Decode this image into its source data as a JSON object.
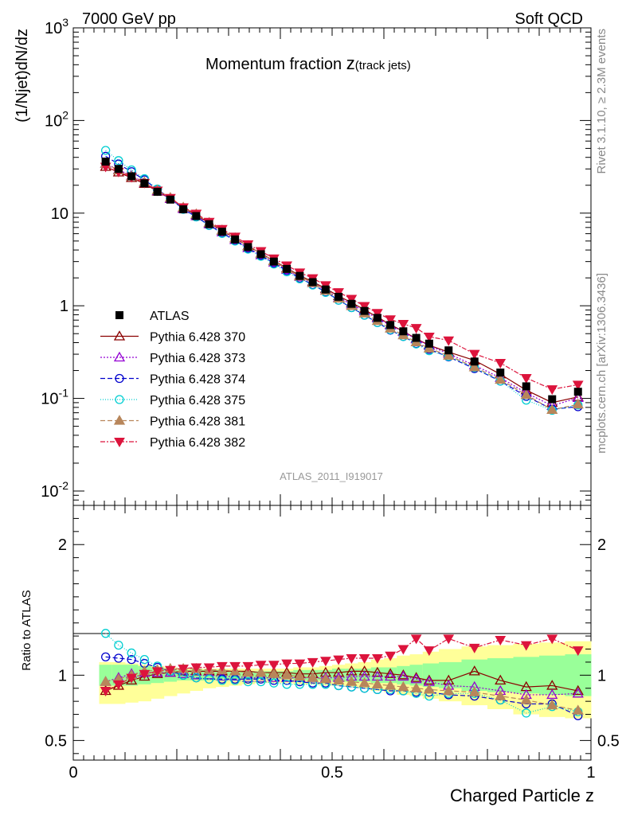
{
  "header": {
    "left": "7000 GeV pp",
    "right": "Soft QCD",
    "watermark": "ATLAS_2011_I919017",
    "side_top": "Rivet 3.1.10, ≥ 2.3M events",
    "side_bottom": "mcplots.cern.ch [arXiv:1306.3436]"
  },
  "chart_data": {
    "type": "scatter",
    "title_main": "Momentum fraction ",
    "title_var": "z",
    "title_sub": "(track jets)",
    "xlabel": "Charged Particle z",
    "ylabel": "(1/Njet)dN/dz",
    "ratio_ylabel": "Ratio to ATLAS",
    "xlim": [
      0,
      1
    ],
    "ylim": [
      0.007,
      1000
    ],
    "ylog": true,
    "ratio_ylim": [
      0.35,
      2.3
    ],
    "x_ticks": [
      "0",
      "0.5",
      "1"
    ],
    "y_ticks_main": [
      "10^-2",
      "10^-1",
      "1",
      "10",
      "10^2",
      "10^3"
    ],
    "y_ticks_ratio": [
      "0.5",
      "1",
      "2"
    ],
    "legend_position": "middle-left",
    "x": [
      0.0625,
      0.0875,
      0.1125,
      0.1375,
      0.1625,
      0.1875,
      0.2125,
      0.2375,
      0.2625,
      0.2875,
      0.3125,
      0.3375,
      0.3625,
      0.3875,
      0.4125,
      0.4375,
      0.4625,
      0.4875,
      0.5125,
      0.5375,
      0.5625,
      0.5875,
      0.6125,
      0.6375,
      0.6625,
      0.6875,
      0.725,
      0.775,
      0.825,
      0.875,
      0.925,
      0.975
    ],
    "data": {
      "name": "ATLAS",
      "color": "#000000",
      "values": [
        36,
        30,
        25,
        21,
        17,
        14,
        11,
        9.3,
        7.6,
        6.3,
        5.2,
        4.3,
        3.6,
        3.0,
        2.5,
        2.1,
        1.8,
        1.5,
        1.25,
        1.05,
        0.88,
        0.74,
        0.62,
        0.53,
        0.45,
        0.39,
        0.33,
        0.25,
        0.19,
        0.135,
        0.098,
        0.118
      ]
    },
    "band": {
      "upper": [
        1.08,
        1.08,
        1.08,
        1.07,
        1.06,
        1.05,
        1.04,
        1.04,
        1.04,
        1.04,
        1.03,
        1.03,
        1.03,
        1.03,
        1.03,
        1.04,
        1.04,
        1.04,
        1.05,
        1.05,
        1.05,
        1.06,
        1.06,
        1.07,
        1.08,
        1.09,
        1.1,
        1.12,
        1.13,
        1.14,
        1.15,
        1.16
      ],
      "lower": [
        0.92,
        0.92,
        0.92,
        0.93,
        0.94,
        0.95,
        0.96,
        0.96,
        0.96,
        0.97,
        0.97,
        0.97,
        0.97,
        0.97,
        0.97,
        0.96,
        0.96,
        0.96,
        0.95,
        0.95,
        0.95,
        0.94,
        0.94,
        0.93,
        0.92,
        0.91,
        0.9,
        0.88,
        0.87,
        0.86,
        0.85,
        0.84
      ],
      "outer_upper": [
        1.1,
        1.1,
        1.09,
        1.08,
        1.07,
        1.06,
        1.05,
        1.05,
        1.05,
        1.05,
        1.05,
        1.05,
        1.05,
        1.05,
        1.05,
        1.06,
        1.06,
        1.07,
        1.08,
        1.09,
        1.1,
        1.12,
        1.13,
        1.15,
        1.16,
        1.18,
        1.2,
        1.22,
        1.23,
        1.24,
        1.25,
        1.26
      ],
      "outer_lower": [
        0.78,
        0.78,
        0.79,
        0.8,
        0.82,
        0.84,
        0.86,
        0.88,
        0.9,
        0.91,
        0.92,
        0.93,
        0.94,
        0.94,
        0.94,
        0.93,
        0.93,
        0.92,
        0.92,
        0.91,
        0.9,
        0.88,
        0.87,
        0.85,
        0.84,
        0.82,
        0.8,
        0.77,
        0.74,
        0.7,
        0.68,
        0.67
      ]
    },
    "series": [
      {
        "name": "Pythia 6.428 370",
        "color": "#8b0000",
        "dash": "",
        "marker": "tri-up-open",
        "ratio": [
          0.88,
          0.92,
          0.96,
          0.99,
          1.01,
          1.02,
          1.03,
          1.03,
          1.03,
          1.03,
          1.03,
          1.03,
          1.02,
          1.02,
          1.02,
          1.01,
          1.01,
          1.02,
          1.02,
          1.03,
          1.03,
          1.02,
          1.01,
          1.0,
          0.98,
          0.96,
          0.96,
          1.03,
          0.96,
          0.91,
          0.92,
          0.88
        ]
      },
      {
        "name": "Pythia 6.428 373",
        "color": "#9400d3",
        "dash": "2,2",
        "marker": "tri-up-open",
        "ratio": [
          0.95,
          0.98,
          1.01,
          1.02,
          1.02,
          1.02,
          1.01,
          1.0,
          1.0,
          0.99,
          0.99,
          0.98,
          0.98,
          0.98,
          0.98,
          0.98,
          0.98,
          0.98,
          0.98,
          0.99,
          0.99,
          0.99,
          0.99,
          0.99,
          0.97,
          0.95,
          0.92,
          0.91,
          0.88,
          0.85,
          0.85,
          0.86
        ]
      },
      {
        "name": "Pythia 6.428 374",
        "color": "#0000cd",
        "dash": "6,3",
        "marker": "circle-open",
        "ratio": [
          1.14,
          1.13,
          1.12,
          1.09,
          1.06,
          1.03,
          1.0,
          0.98,
          0.97,
          0.97,
          0.97,
          0.97,
          0.97,
          0.96,
          0.96,
          0.95,
          0.94,
          0.94,
          0.92,
          0.91,
          0.9,
          0.89,
          0.88,
          0.88,
          0.87,
          0.87,
          0.85,
          0.84,
          0.81,
          0.78,
          0.78,
          0.69
        ]
      },
      {
        "name": "Pythia 6.428 375",
        "color": "#00ced1",
        "dash": "1,2",
        "marker": "circle-open",
        "ratio": [
          1.32,
          1.23,
          1.17,
          1.12,
          1.07,
          1.03,
          1.0,
          0.98,
          0.97,
          0.96,
          0.96,
          0.95,
          0.95,
          0.94,
          0.93,
          0.93,
          0.93,
          0.93,
          0.92,
          0.91,
          0.9,
          0.89,
          0.89,
          0.88,
          0.86,
          0.84,
          0.86,
          0.86,
          0.81,
          0.71,
          0.76,
          0.72
        ]
      },
      {
        "name": "Pythia 6.428 381",
        "color": "#b8865b",
        "dash": "6,3",
        "marker": "tri-up-filled",
        "ratio": [
          0.95,
          0.97,
          1.0,
          1.03,
          1.04,
          1.05,
          1.05,
          1.05,
          1.04,
          1.04,
          1.03,
          1.02,
          1.02,
          1.01,
          1.0,
          0.99,
          0.98,
          0.97,
          0.96,
          0.95,
          0.94,
          0.93,
          0.92,
          0.91,
          0.9,
          0.89,
          0.88,
          0.87,
          0.84,
          0.81,
          0.77,
          0.73
        ]
      },
      {
        "name": "Pythia 6.428 382",
        "color": "#dc143c",
        "dash": "6,2,2,2",
        "marker": "tri-down-filled",
        "ratio": [
          0.88,
          0.93,
          0.98,
          1.01,
          1.03,
          1.04,
          1.05,
          1.06,
          1.06,
          1.07,
          1.07,
          1.07,
          1.08,
          1.08,
          1.09,
          1.09,
          1.1,
          1.11,
          1.12,
          1.13,
          1.13,
          1.13,
          1.15,
          1.2,
          1.28,
          1.19,
          1.28,
          1.21,
          1.27,
          1.23,
          1.28,
          1.19
        ]
      }
    ]
  }
}
